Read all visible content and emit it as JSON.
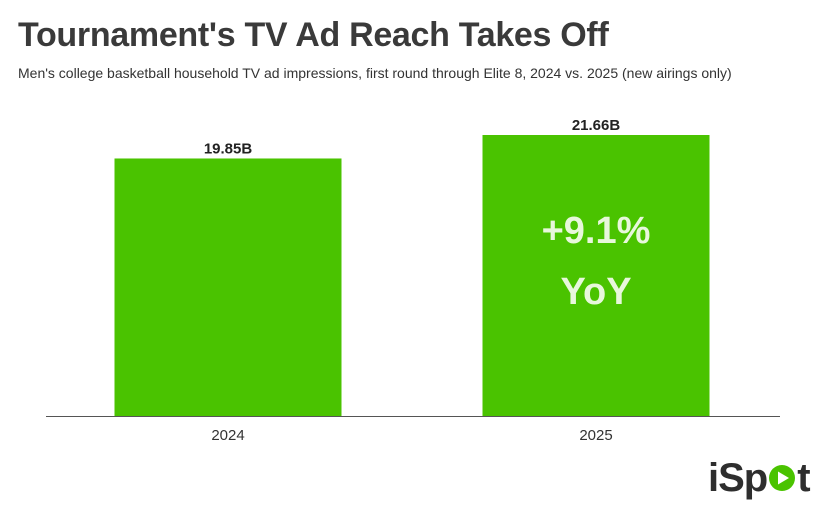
{
  "header": {
    "title": "Tournament's TV Ad Reach Takes Off",
    "subtitle": "Men's college basketball household TV ad impressions, first round through Elite 8, 2024 vs. 2025 (new airings only)"
  },
  "chart_data": {
    "type": "bar",
    "title": "Tournament's TV Ad Reach Takes Off",
    "subtitle": "Men's college basketball household TV ad impressions, first round through Elite 8, 2024 vs. 2025 (new airings only)",
    "categories": [
      "2024",
      "2025"
    ],
    "values": [
      19.85,
      21.66
    ],
    "value_labels": [
      "19.85B",
      "21.66B"
    ],
    "unit": "B",
    "ylim": [
      0,
      21.66
    ],
    "grid": false,
    "bar_color": "#4ac300",
    "annotation": {
      "category": "2025",
      "lines": [
        "+9.1%",
        "YoY"
      ]
    }
  },
  "logo": {
    "brand_text": "iSpot",
    "icon": "play-icon",
    "dot_color": "#4ac300"
  }
}
